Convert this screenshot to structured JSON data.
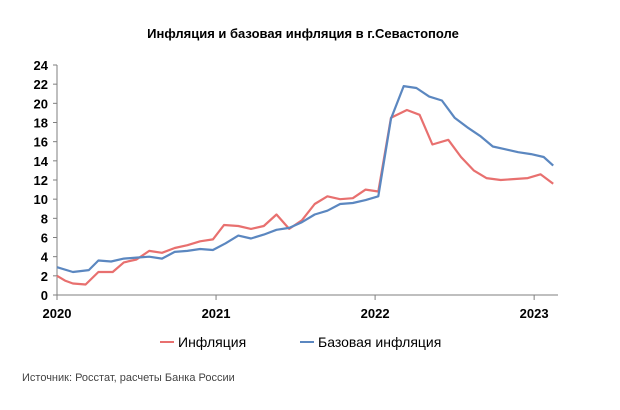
{
  "chart_data": {
    "type": "line",
    "title": "Инфляция и базовая инфляция в г.Севастополе",
    "y_ticks": [
      "0",
      "2",
      "4",
      "6",
      "8",
      "10",
      "12",
      "14",
      "16",
      "18",
      "20",
      "22",
      "24"
    ],
    "ylim": [
      0,
      24
    ],
    "x_start": 2020.0,
    "x_end": 2023.15,
    "x_ticks": [
      "2020",
      "2021",
      "2022",
      "2023"
    ],
    "grid": false,
    "legend_position": "bottom",
    "series": [
      {
        "name": "Инфляция",
        "color": "#e8706f",
        "x": [
          2020.0,
          2020.05,
          2020.1,
          2020.18,
          2020.26,
          2020.35,
          2020.42,
          2020.5,
          2020.58,
          2020.66,
          2020.74,
          2020.82,
          2020.9,
          2020.98,
          2021.05,
          2021.14,
          2021.22,
          2021.3,
          2021.38,
          2021.46,
          2021.54,
          2021.62,
          2021.7,
          2021.78,
          2021.86,
          2021.94,
          2022.02,
          2022.1,
          2022.2,
          2022.28,
          2022.36,
          2022.46,
          2022.54,
          2022.62,
          2022.7,
          2022.79,
          2022.88,
          2022.96,
          2023.04,
          2023.12
        ],
        "values": [
          2.0,
          1.5,
          1.2,
          1.1,
          2.4,
          2.4,
          3.4,
          3.7,
          4.6,
          4.4,
          4.9,
          5.2,
          5.6,
          5.8,
          7.3,
          7.2,
          6.9,
          7.2,
          8.4,
          6.9,
          7.8,
          9.5,
          10.3,
          10.0,
          10.1,
          11.0,
          10.8,
          18.5,
          19.3,
          18.8,
          15.7,
          16.2,
          14.4,
          13.0,
          12.2,
          12.0,
          12.1,
          12.2,
          12.6,
          11.6
        ]
      },
      {
        "name": "Базовая инфляция",
        "color": "#5b87c0",
        "x": [
          2020.0,
          2020.1,
          2020.2,
          2020.26,
          2020.34,
          2020.42,
          2020.5,
          2020.58,
          2020.66,
          2020.74,
          2020.82,
          2020.9,
          2020.98,
          2021.06,
          2021.14,
          2021.22,
          2021.3,
          2021.38,
          2021.46,
          2021.54,
          2021.62,
          2021.7,
          2021.78,
          2021.86,
          2021.94,
          2022.02,
          2022.1,
          2022.18,
          2022.26,
          2022.34,
          2022.42,
          2022.5,
          2022.58,
          2022.66,
          2022.74,
          2022.82,
          2022.9,
          2022.98,
          2023.06,
          2023.12
        ],
        "values": [
          2.9,
          2.4,
          2.6,
          3.6,
          3.5,
          3.8,
          3.9,
          4.0,
          3.8,
          4.5,
          4.6,
          4.8,
          4.7,
          5.4,
          6.2,
          5.9,
          6.3,
          6.8,
          7.0,
          7.6,
          8.4,
          8.8,
          9.5,
          9.6,
          9.9,
          10.3,
          18.4,
          21.8,
          21.6,
          20.7,
          20.3,
          18.5,
          17.5,
          16.6,
          15.5,
          15.2,
          14.9,
          14.7,
          14.4,
          13.5
        ]
      }
    ]
  },
  "source": "Источник: Росстат, расчеты Банка России"
}
